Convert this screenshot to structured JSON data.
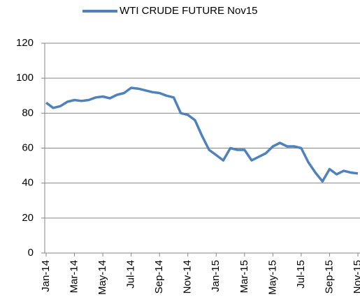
{
  "chart_data": {
    "type": "line",
    "categories": [
      "Jan-14",
      null,
      null,
      null,
      "Mar-14",
      null,
      null,
      null,
      "May-14",
      null,
      null,
      null,
      "Jul-14",
      null,
      null,
      null,
      "Sep-14",
      null,
      null,
      null,
      "Nov-14",
      null,
      null,
      null,
      "Jan-15",
      null,
      null,
      null,
      "Mar-15",
      null,
      null,
      null,
      "May-15",
      null,
      null,
      null,
      "Jul-15",
      null,
      null,
      null,
      "Sep-15",
      null,
      null,
      null,
      "Nov-15"
    ],
    "series": [
      {
        "name": "WTI CRUDE FUTURE  Nov15",
        "color": "#4f81bd",
        "values": [
          86,
          83,
          84,
          86.5,
          87.5,
          87,
          87.5,
          89,
          89.5,
          88.5,
          90.5,
          91.5,
          94.5,
          94,
          93,
          92,
          91.5,
          90,
          89,
          80,
          79,
          76,
          67,
          59,
          56,
          53,
          60,
          59,
          59,
          53,
          55,
          57,
          61,
          63,
          61,
          61,
          60,
          52,
          46,
          41,
          48,
          45,
          47,
          46,
          45.5
        ]
      }
    ],
    "ylim": [
      0,
      120
    ],
    "yticks": [
      0,
      20,
      40,
      60,
      80,
      100,
      120
    ],
    "grid": true,
    "legend": "top"
  }
}
